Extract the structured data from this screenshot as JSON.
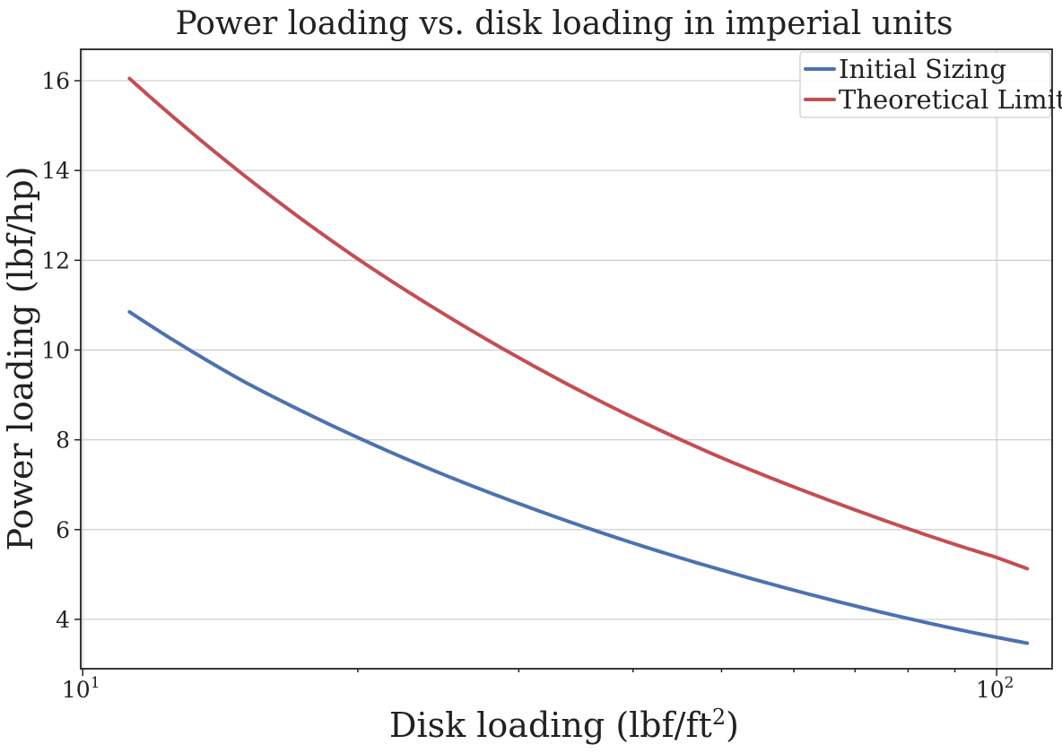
{
  "chart_data": {
    "type": "line",
    "title": "Power loading vs. disk loading in imperial units",
    "xlabel": "Disk loading (lbf/ft",
    "xlabel_superscript": "2",
    "xlabel_suffix": ")",
    "ylabel": "Power loading (lbf/hp)",
    "x_scale": "log",
    "xlim": [
      9.95,
      115
    ],
    "ylim": [
      2.9,
      16.7
    ],
    "y_ticks": [
      "4",
      "6",
      "8",
      "10",
      "12",
      "14",
      "16"
    ],
    "x_major_ticks": [
      {
        "base": "10",
        "exponent": "1"
      },
      {
        "base": "10",
        "exponent": "2"
      }
    ],
    "grid": true,
    "legend_position": "top-right",
    "series": [
      {
        "name": "Initial Sizing",
        "color": "#4c72b0",
        "x": [
          11.25,
          12.5,
          15,
          20,
          25,
          30,
          40,
          50,
          60,
          70,
          80,
          90,
          100,
          108
        ],
        "y": [
          10.85,
          10.25,
          9.3,
          8.05,
          7.2,
          6.58,
          5.7,
          5.1,
          4.65,
          4.3,
          4.02,
          3.79,
          3.6,
          3.47
        ]
      },
      {
        "name": "Theoretical Limit",
        "color": "#c44e52",
        "x": [
          11.25,
          12.5,
          15,
          20,
          25,
          30,
          40,
          50,
          60,
          70,
          80,
          90,
          100,
          108
        ],
        "y": [
          16.05,
          15.23,
          13.9,
          12.03,
          10.77,
          9.83,
          8.5,
          7.6,
          6.95,
          6.44,
          6.02,
          5.67,
          5.38,
          5.13
        ]
      }
    ]
  }
}
